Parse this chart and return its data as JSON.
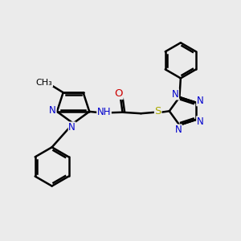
{
  "bg_color": "#ebebeb",
  "bond_color": "#000000",
  "bond_width": 1.8,
  "atom_colors": {
    "N": "#0000cc",
    "O": "#cc0000",
    "S": "#aaaa00",
    "C": "#000000"
  },
  "font_size": 8.5,
  "figsize": [
    3.0,
    3.0
  ],
  "dpi": 100
}
